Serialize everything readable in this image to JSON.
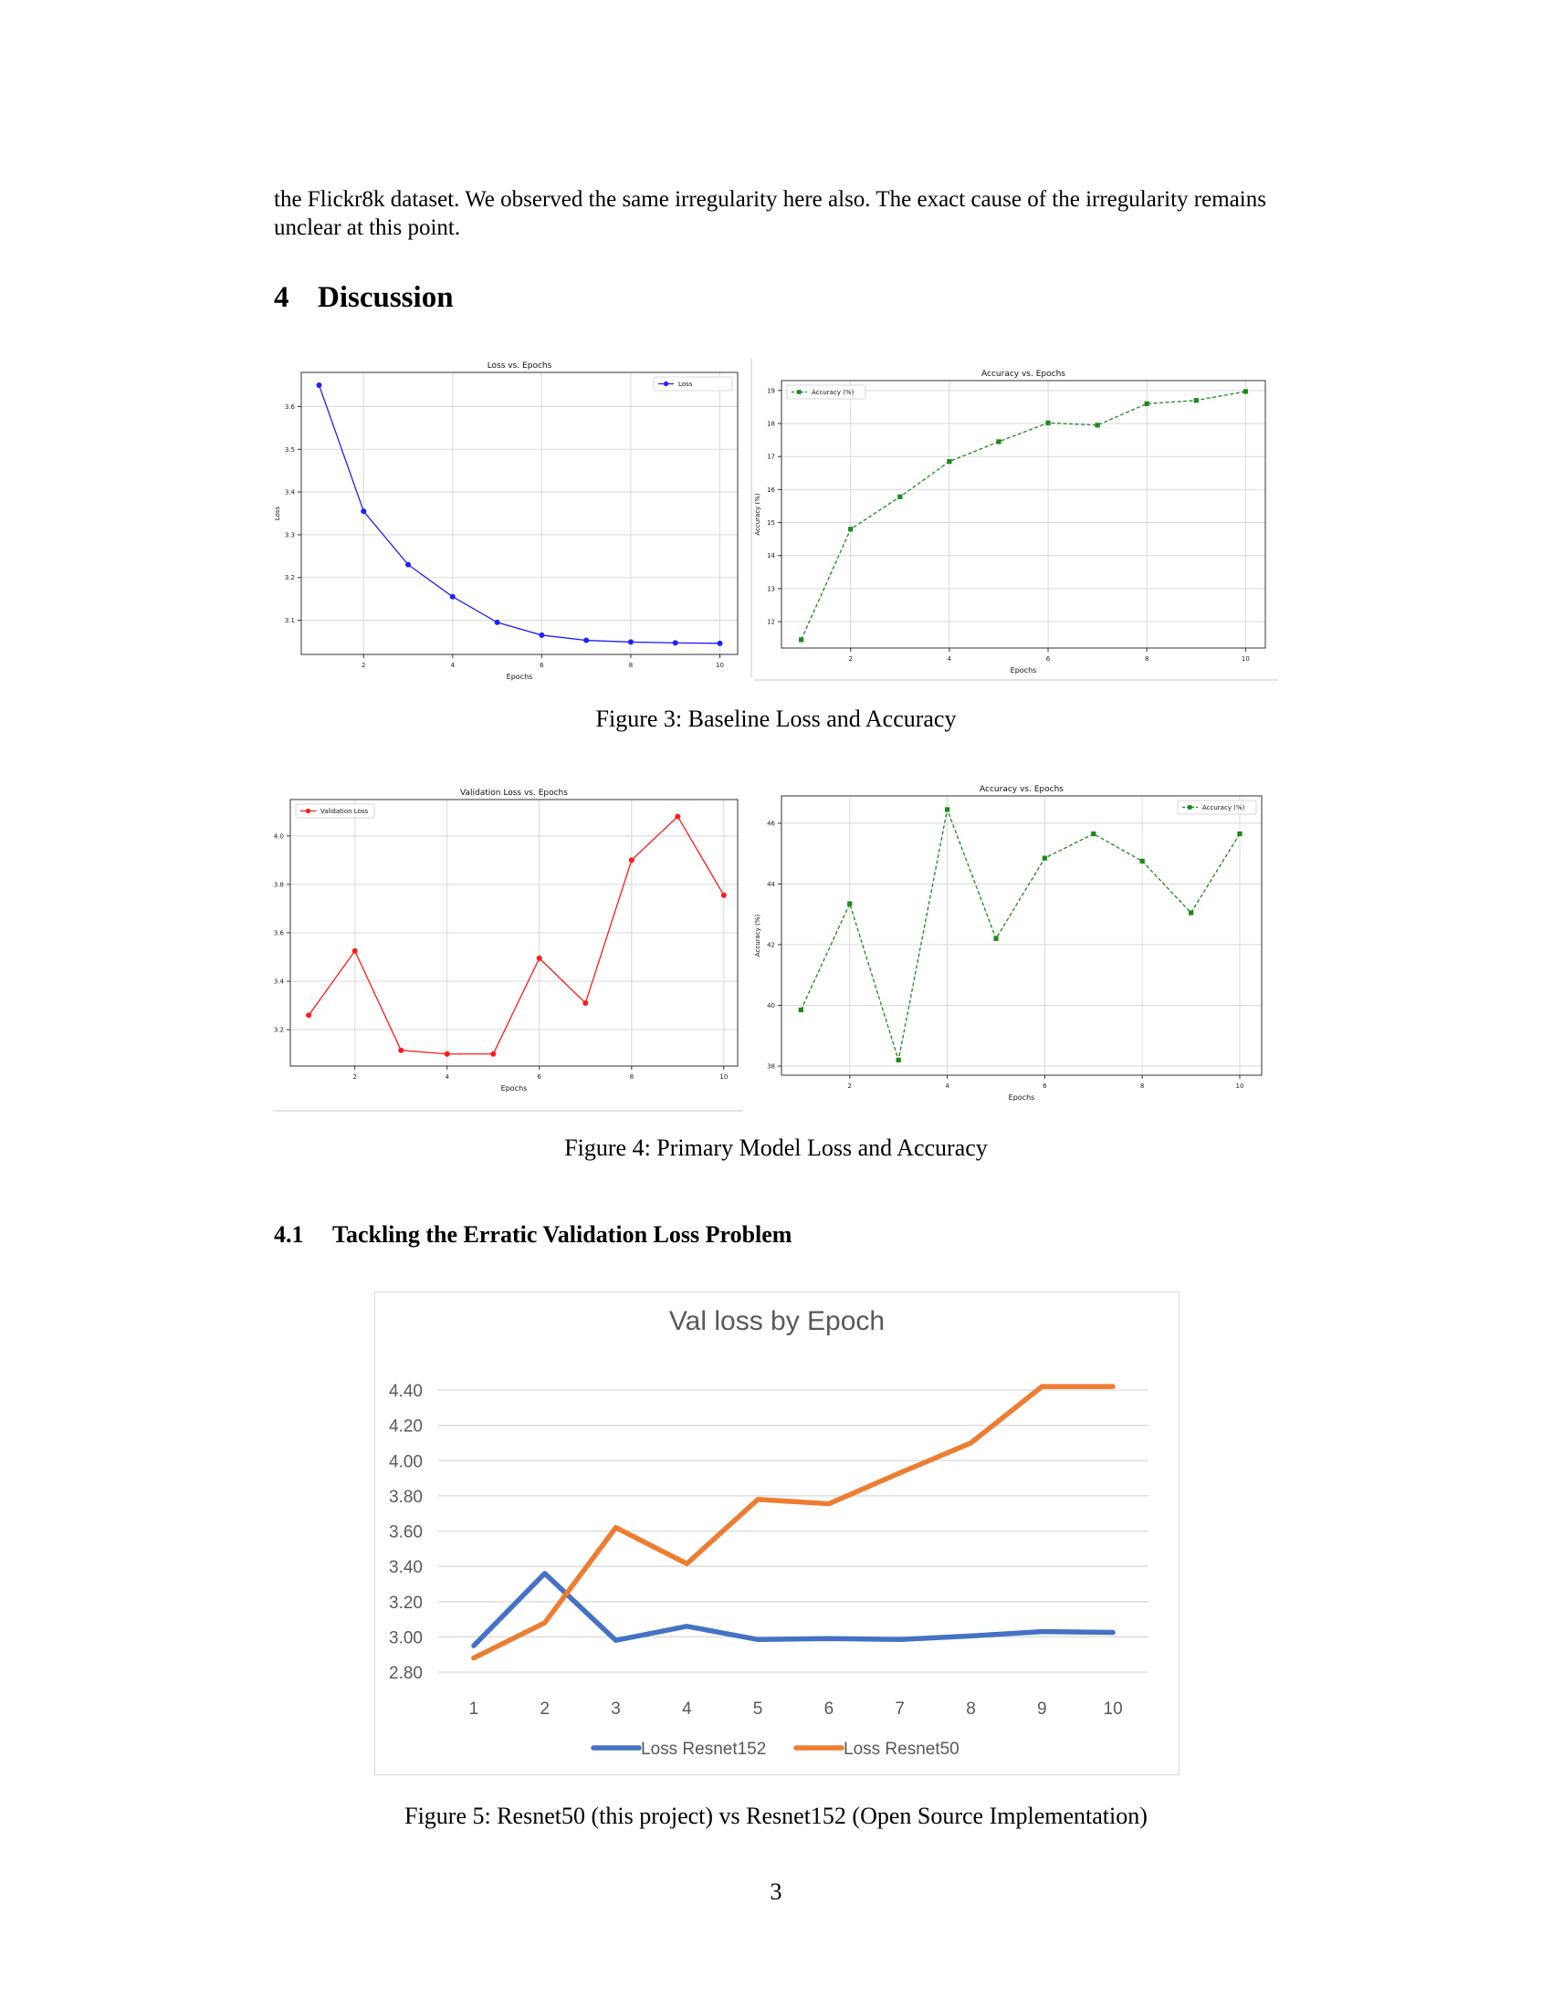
{
  "paragraph": "the Flickr8k dataset. We observed the same irregularity here also. The exact cause of the irregularity remains unclear at this point.",
  "section": {
    "number": "4",
    "title": "Discussion"
  },
  "subsection": {
    "number": "4.1",
    "title": "Tackling the Erratic Validation Loss Problem"
  },
  "figure3_caption": "Figure 3: Baseline Loss and Accuracy",
  "figure4_caption": "Figure 4: Primary Model Loss and Accuracy",
  "figure5_caption": "Figure 5: Resnet50 (this project) vs Resnet152 (Open Source Implementation)",
  "page_number": "3",
  "colors": {
    "blue": "#1f1fff",
    "green": "#1a8a1a",
    "red": "#ff1a1a",
    "excel_blue": "#4472c4",
    "excel_orange": "#ed7d31"
  },
  "chart_data": [
    {
      "type": "line",
      "title": "Loss vs. Epochs",
      "xlabel": "Epochs",
      "ylabel": "Loss",
      "x": [
        1,
        2,
        3,
        4,
        5,
        6,
        7,
        8,
        9,
        10
      ],
      "xticks": [
        2,
        4,
        6,
        8,
        10
      ],
      "yticks": [
        3.1,
        3.2,
        3.3,
        3.4,
        3.5,
        3.6
      ],
      "xlim": [
        0.6,
        10.4
      ],
      "ylim": [
        3.02,
        3.68
      ],
      "grid": true,
      "legend_position": "top-right",
      "series": [
        {
          "name": "Loss",
          "values": [
            3.65,
            3.355,
            3.23,
            3.155,
            3.095,
            3.065,
            3.053,
            3.049,
            3.047,
            3.046
          ],
          "color": "#1f1fff",
          "marker": "circle",
          "dashed": false
        }
      ]
    },
    {
      "type": "line",
      "title": "Accuracy vs. Epochs",
      "xlabel": "Epochs",
      "ylabel": "Accuracy (%)",
      "x": [
        1,
        2,
        3,
        4,
        5,
        6,
        7,
        8,
        9,
        10
      ],
      "xticks": [
        2,
        4,
        6,
        8,
        10
      ],
      "yticks": [
        12,
        13,
        14,
        15,
        16,
        17,
        18,
        19
      ],
      "xlim": [
        0.6,
        10.4
      ],
      "ylim": [
        11.2,
        19.3
      ],
      "grid": true,
      "legend_position": "top-left",
      "series": [
        {
          "name": "Accuracy (%)",
          "values": [
            11.45,
            14.8,
            15.78,
            16.85,
            17.45,
            18.02,
            17.95,
            18.6,
            18.7,
            18.97
          ],
          "color": "#1a8a1a",
          "marker": "square",
          "dashed": true
        }
      ]
    },
    {
      "type": "line",
      "title": "Validation Loss vs. Epochs",
      "xlabel": "Epochs",
      "ylabel": "",
      "x": [
        1,
        2,
        3,
        4,
        5,
        6,
        7,
        8,
        9,
        10
      ],
      "xticks": [
        2,
        4,
        6,
        8,
        10
      ],
      "yticks": [
        3.2,
        3.4,
        3.6,
        3.8,
        4.0
      ],
      "ytick_labels": [
        "3.2",
        "3.4",
        "3.6",
        "3.8",
        "4.0"
      ],
      "xlim": [
        0.6,
        10.3
      ],
      "ylim": [
        3.05,
        4.15
      ],
      "grid": true,
      "legend_position": "top-left",
      "series": [
        {
          "name": "Validation Loss",
          "values": [
            3.26,
            3.525,
            3.115,
            3.1,
            3.1,
            3.495,
            3.31,
            3.9,
            4.08,
            3.755
          ],
          "color": "#ff1a1a",
          "marker": "circle",
          "dashed": false
        }
      ]
    },
    {
      "type": "line",
      "title": "Accuracy vs. Epochs",
      "xlabel": "Epochs",
      "ylabel": "Accuracy (%)",
      "x": [
        1,
        2,
        3,
        4,
        5,
        6,
        7,
        8,
        9,
        10
      ],
      "xticks": [
        2,
        4,
        6,
        8,
        10
      ],
      "yticks": [
        38,
        40,
        42,
        44,
        46
      ],
      "xlim": [
        0.6,
        10.45
      ],
      "ylim": [
        37.7,
        46.9
      ],
      "grid": true,
      "legend_position": "top-right",
      "series": [
        {
          "name": "Accuracy (%)",
          "values": [
            39.85,
            43.35,
            38.2,
            46.45,
            42.2,
            44.85,
            45.65,
            44.75,
            43.05,
            45.65
          ],
          "color": "#1a8a1a",
          "marker": "square",
          "dashed": true
        }
      ]
    },
    {
      "type": "line",
      "title": "Val loss by Epoch",
      "xlabel": "",
      "ylabel": "",
      "categories": [
        "1",
        "2",
        "3",
        "4",
        "5",
        "6",
        "7",
        "8",
        "9",
        "10"
      ],
      "yticks": [
        "2.80",
        "3.00",
        "3.20",
        "3.40",
        "3.60",
        "3.80",
        "4.00",
        "4.20",
        "4.40"
      ],
      "ylim": [
        2.8,
        4.4
      ],
      "grid": true,
      "legend_position": "bottom",
      "series": [
        {
          "name": "Loss Resnet152",
          "values": [
            2.95,
            3.36,
            2.98,
            3.06,
            2.985,
            2.99,
            2.985,
            3.005,
            3.03,
            3.025
          ],
          "color": "#4472c4"
        },
        {
          "name": "Loss Resnet50",
          "values": [
            2.88,
            3.08,
            3.62,
            3.415,
            3.78,
            3.755,
            3.93,
            4.1,
            4.42,
            4.42
          ],
          "color": "#ed7d31"
        }
      ]
    }
  ]
}
